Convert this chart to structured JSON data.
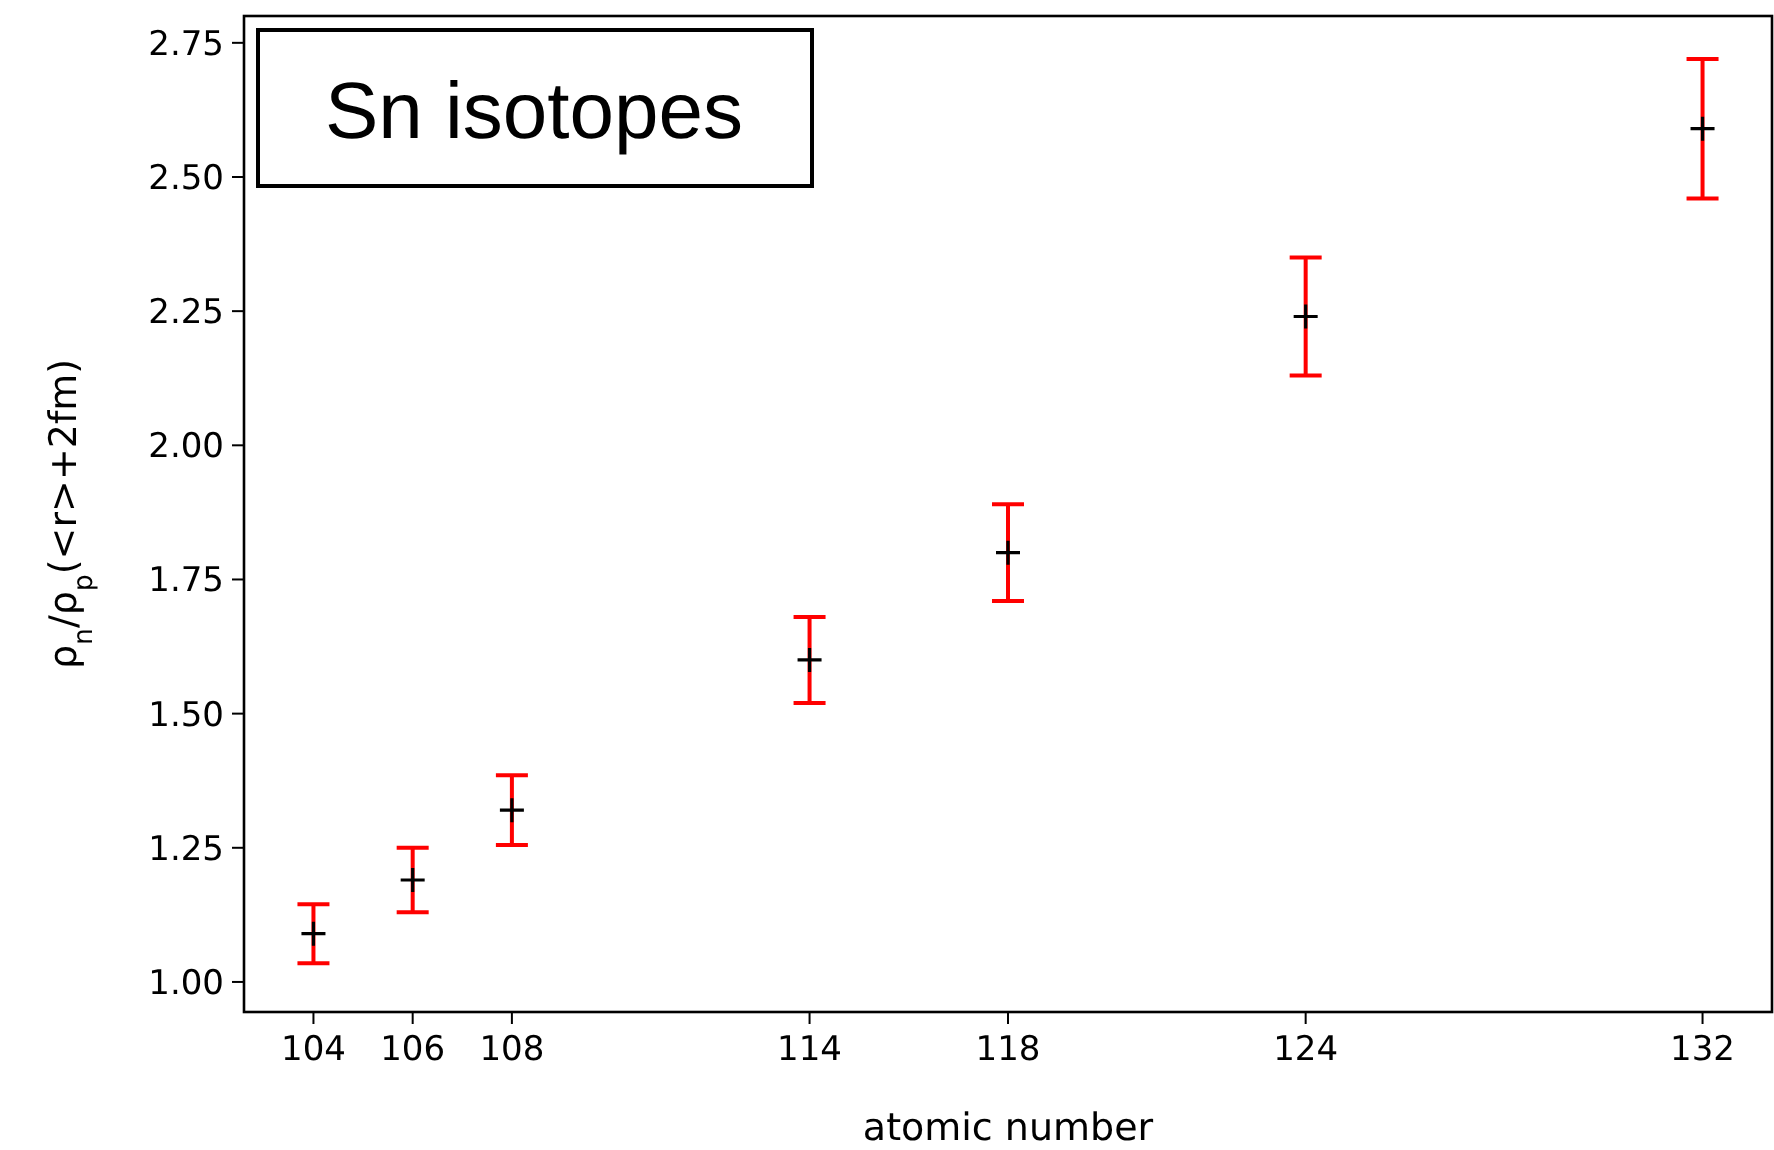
{
  "chart_data": {
    "type": "scatter",
    "title": "Sn isotopes",
    "xlabel": "atomic number",
    "ylabel": "ρ$_{n}$/ρ$_{p}$(<r>+2fm)",
    "x": [
      104,
      106,
      108,
      114,
      118,
      124,
      132
    ],
    "series": [
      {
        "color": "#000000",
        "values": [
          1.09,
          1.19,
          1.32,
          1.6,
          1.8,
          2.24,
          2.59
        ],
        "errors": [
          0.055,
          0.06,
          0.065,
          0.08,
          0.09,
          0.11,
          0.13
        ]
      }
    ],
    "marker": "cross",
    "grid": false,
    "xlim": [
      102.6,
      133.4
    ],
    "xticks": [
      104,
      106,
      108,
      114,
      118,
      124,
      132
    ],
    "ylim": [
      0.944,
      2.8
    ],
    "yticks": [
      {
        "value": 1,
        "label": "1.00"
      },
      {
        "value": 1.25,
        "label": "1.25"
      },
      {
        "value": 1.5,
        "label": "1.50"
      },
      {
        "value": 1.75,
        "label": "1.75"
      },
      {
        "value": 2,
        "label": "2.00"
      },
      {
        "value": 2.25,
        "label": "2.25"
      },
      {
        "value": 2.5,
        "label": "2.50"
      },
      {
        "value": 2.75,
        "label": "2.75"
      }
    ]
  }
}
